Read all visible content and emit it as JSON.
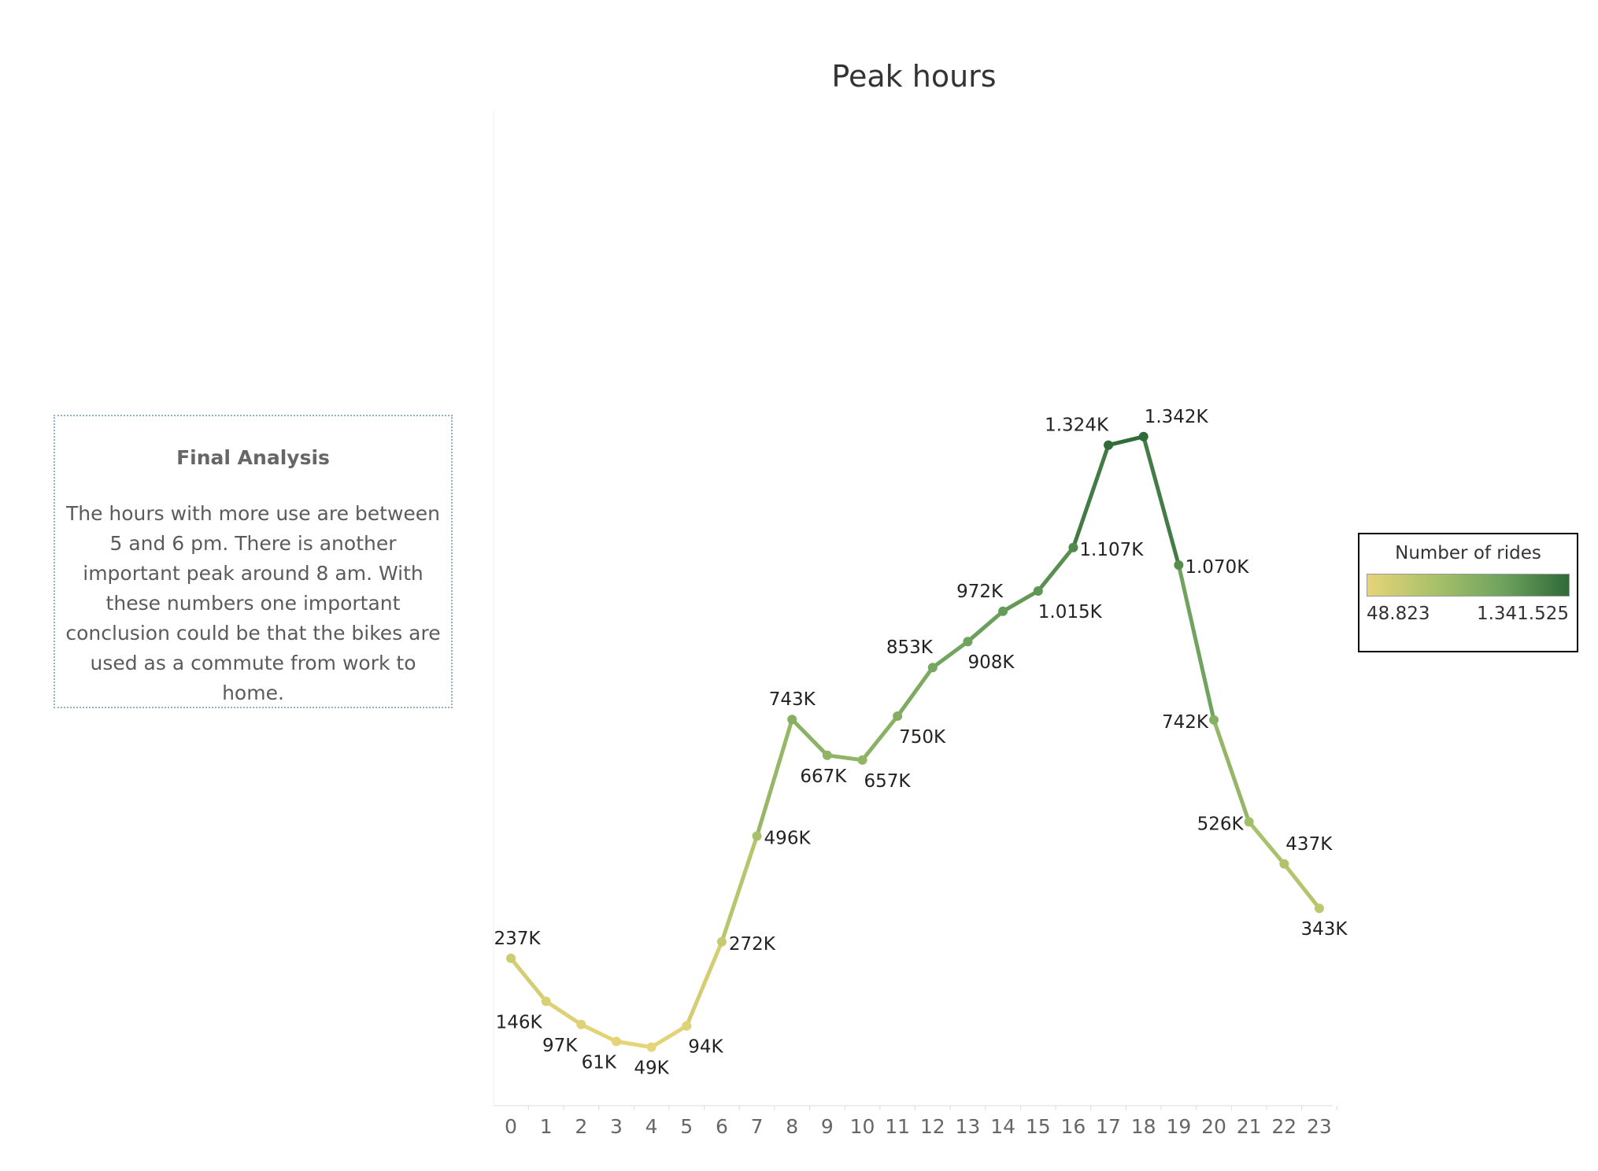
{
  "analysis": {
    "title": "Final Analysis",
    "body": "The hours with more use are between 5 and 6 pm. There is another important peak around 8 am. With these numbers one important conclusion could be that the bikes are used as a commute from work to home."
  },
  "legend": {
    "title": "Number of rides",
    "min_label": "48.823",
    "max_label": "1.341.525"
  },
  "colors": {
    "low": "#e6d478",
    "mid_low": "#a9c16a",
    "mid_high": "#6fa35e",
    "high": "#2f6a39"
  },
  "chart_data": {
    "type": "line",
    "title": "Peak hours",
    "xlabel": "",
    "ylabel": "",
    "categories": [
      "0",
      "1",
      "2",
      "3",
      "4",
      "5",
      "6",
      "7",
      "8",
      "9",
      "10",
      "11",
      "12",
      "13",
      "14",
      "15",
      "16",
      "17",
      "18",
      "19",
      "20",
      "21",
      "22",
      "23"
    ],
    "values": [
      237000,
      146000,
      97000,
      61000,
      49000,
      94000,
      272000,
      496000,
      743000,
      667000,
      657000,
      750000,
      853000,
      908000,
      972000,
      1015000,
      1107000,
      1324000,
      1342000,
      1070000,
      742000,
      526000,
      437000,
      343000
    ],
    "labels": [
      "237K",
      "146K",
      "97K",
      "61K",
      "49K",
      "94K",
      "272K",
      "496K",
      "743K",
      "667K",
      "657K",
      "750K",
      "853K",
      "908K",
      "972K",
      "1.015K",
      "1.107K",
      "1.324K",
      "1.342K",
      "1.070K",
      "742K",
      "526K",
      "437K",
      "343K"
    ],
    "color_scale": {
      "min": 48823,
      "max": 1341525
    },
    "grid": false,
    "legend_position": "right"
  }
}
